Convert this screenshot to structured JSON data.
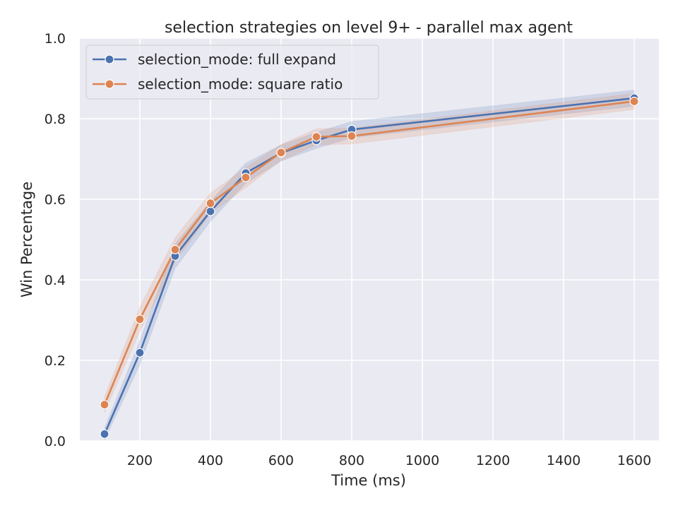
{
  "chart_data": {
    "type": "line",
    "title": "selection strategies on level 9+ - parallel max agent",
    "xlabel": "Time (ms)",
    "ylabel": "Win Percentage",
    "xlim": [
      30,
      1670
    ],
    "ylim": [
      0,
      1
    ],
    "xticks": [
      200,
      400,
      600,
      800,
      1000,
      1200,
      1400,
      1600
    ],
    "yticks": [
      0.0,
      0.2,
      0.4,
      0.6,
      0.8,
      1.0
    ],
    "ytick_labels": [
      "0.0",
      "0.2",
      "0.4",
      "0.6",
      "0.8",
      "1.0"
    ],
    "grid": true,
    "legend": "top-left",
    "x": [
      100,
      200,
      300,
      400,
      500,
      600,
      700,
      800,
      1600
    ],
    "series": [
      {
        "name": "selection_mode: full expand",
        "color": "#4c72b0",
        "values": [
          0.017,
          0.219,
          0.459,
          0.57,
          0.665,
          0.715,
          0.746,
          0.773,
          0.851
        ],
        "ci_half": [
          0.015,
          0.03,
          0.03,
          0.025,
          0.025,
          0.02,
          0.02,
          0.02,
          0.02
        ]
      },
      {
        "name": "selection_mode: square ratio",
        "color": "#dd8452",
        "values": [
          0.09,
          0.302,
          0.475,
          0.59,
          0.654,
          0.716,
          0.755,
          0.757,
          0.843
        ],
        "ci_half": [
          0.02,
          0.03,
          0.03,
          0.025,
          0.025,
          0.02,
          0.02,
          0.02,
          0.02
        ]
      }
    ]
  }
}
